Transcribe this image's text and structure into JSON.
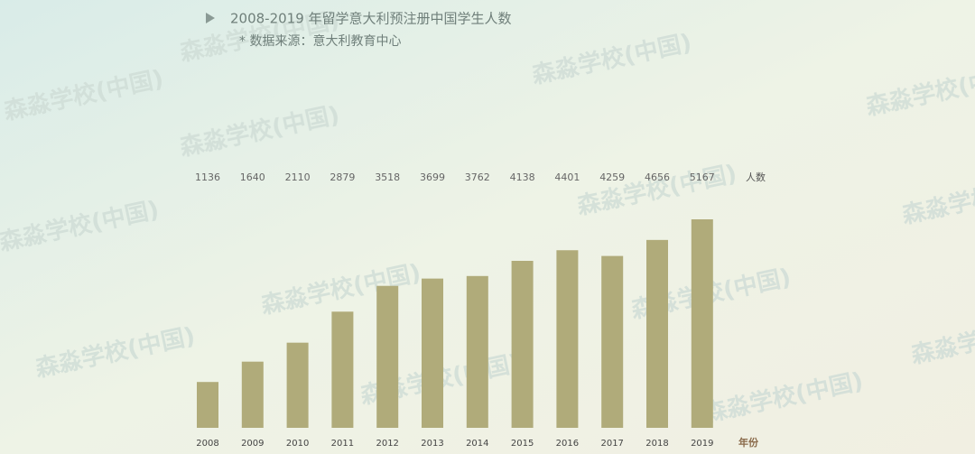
{
  "chart_data": {
    "type": "bar",
    "title": "2008-2019 年留学意大利预注册中国学生人数",
    "subtitle": "* 数据来源：意大利教育中心",
    "categories": [
      "2008",
      "2009",
      "2010",
      "2011",
      "2012",
      "2013",
      "2014",
      "2015",
      "2016",
      "2017",
      "2018",
      "2019"
    ],
    "values": [
      1136,
      1640,
      2110,
      2879,
      3518,
      3699,
      3762,
      4138,
      4401,
      4259,
      4656,
      5167
    ],
    "value_axis_label": "人数",
    "x_axis_label": "年份",
    "color": "#b0ab7a",
    "watermark": "森淼学校(中国)"
  }
}
